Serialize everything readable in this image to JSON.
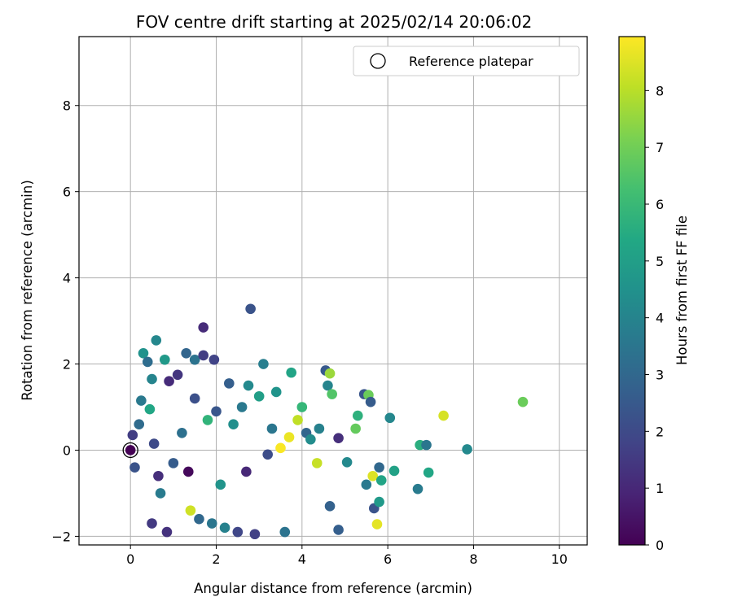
{
  "chart_data": {
    "type": "scatter",
    "title": "FOV centre drift starting at 2025/02/14 20:06:02",
    "xlabel": "Angular distance from reference (arcmin)",
    "ylabel": "Rotation from reference (arcmin)",
    "xlim": [
      -1.2,
      10.65
    ],
    "ylim": [
      -2.2,
      9.6
    ],
    "xticks": [
      0,
      2,
      4,
      6,
      8,
      10
    ],
    "yticks": [
      -2,
      0,
      2,
      4,
      6,
      8
    ],
    "grid": true,
    "legend": {
      "placement": "upper right",
      "entries": [
        "Reference platepar"
      ]
    },
    "reference_point": {
      "x": 0,
      "y": 0,
      "label": "Reference platepar"
    },
    "colorbar": {
      "label": "Hours from first FF file",
      "range": [
        0,
        8.95
      ],
      "ticks": [
        0,
        1,
        2,
        3,
        4,
        5,
        6,
        7,
        8
      ],
      "colormap": "viridis"
    },
    "series": [
      {
        "points": [
          {
            "x": 0.0,
            "y": 0.0,
            "c": 0.0
          },
          {
            "x": 0.05,
            "y": 0.35,
            "c": 1.6
          },
          {
            "x": 0.1,
            "y": -0.4,
            "c": 2.3
          },
          {
            "x": 0.2,
            "y": 0.6,
            "c": 3.1
          },
          {
            "x": 0.25,
            "y": 1.15,
            "c": 3.6
          },
          {
            "x": 0.3,
            "y": 2.25,
            "c": 4.5
          },
          {
            "x": 0.4,
            "y": 2.05,
            "c": 3.2
          },
          {
            "x": 0.45,
            "y": 0.95,
            "c": 5.3
          },
          {
            "x": 0.5,
            "y": 1.65,
            "c": 4.0
          },
          {
            "x": 0.55,
            "y": 0.15,
            "c": 2.0
          },
          {
            "x": 0.6,
            "y": 2.55,
            "c": 4.1
          },
          {
            "x": 0.65,
            "y": -0.6,
            "c": 1.2
          },
          {
            "x": 0.7,
            "y": -1.0,
            "c": 3.7
          },
          {
            "x": 0.5,
            "y": -1.7,
            "c": 1.5
          },
          {
            "x": 0.8,
            "y": 2.1,
            "c": 4.8
          },
          {
            "x": 0.85,
            "y": -1.9,
            "c": 1.3
          },
          {
            "x": 0.9,
            "y": 1.6,
            "c": 1.1
          },
          {
            "x": 1.0,
            "y": -0.3,
            "c": 2.6
          },
          {
            "x": 1.1,
            "y": 1.75,
            "c": 1.4
          },
          {
            "x": 1.2,
            "y": 0.4,
            "c": 3.3
          },
          {
            "x": 1.3,
            "y": 2.25,
            "c": 2.9
          },
          {
            "x": 1.35,
            "y": -0.5,
            "c": 0.2
          },
          {
            "x": 1.4,
            "y": -1.4,
            "c": 8.3
          },
          {
            "x": 1.5,
            "y": 2.1,
            "c": 3.4
          },
          {
            "x": 1.5,
            "y": 1.2,
            "c": 2.2
          },
          {
            "x": 1.6,
            "y": -1.6,
            "c": 3.0
          },
          {
            "x": 1.7,
            "y": 2.85,
            "c": 1.1
          },
          {
            "x": 1.7,
            "y": 2.2,
            "c": 1.6
          },
          {
            "x": 1.8,
            "y": 0.7,
            "c": 5.8
          },
          {
            "x": 1.9,
            "y": -1.7,
            "c": 3.5
          },
          {
            "x": 1.95,
            "y": 2.1,
            "c": 1.8
          },
          {
            "x": 2.0,
            "y": 0.9,
            "c": 2.4
          },
          {
            "x": 2.1,
            "y": -0.8,
            "c": 4.6
          },
          {
            "x": 2.2,
            "y": -1.8,
            "c": 3.9
          },
          {
            "x": 2.3,
            "y": 1.55,
            "c": 2.7
          },
          {
            "x": 2.4,
            "y": 0.6,
            "c": 4.4
          },
          {
            "x": 2.5,
            "y": -1.9,
            "c": 1.9
          },
          {
            "x": 2.6,
            "y": 1.0,
            "c": 3.6
          },
          {
            "x": 2.7,
            "y": -0.5,
            "c": 1.0
          },
          {
            "x": 2.75,
            "y": 1.5,
            "c": 4.2
          },
          {
            "x": 2.8,
            "y": 3.28,
            "c": 2.3
          },
          {
            "x": 2.9,
            "y": -1.95,
            "c": 1.7
          },
          {
            "x": 3.0,
            "y": 1.25,
            "c": 5.0
          },
          {
            "x": 3.1,
            "y": 2.0,
            "c": 3.8
          },
          {
            "x": 3.2,
            "y": -0.1,
            "c": 2.1
          },
          {
            "x": 3.3,
            "y": 0.5,
            "c": 3.5
          },
          {
            "x": 3.4,
            "y": 1.35,
            "c": 4.6
          },
          {
            "x": 3.5,
            "y": 0.05,
            "c": 8.9
          },
          {
            "x": 3.6,
            "y": -1.9,
            "c": 3.4
          },
          {
            "x": 3.7,
            "y": 0.3,
            "c": 8.7
          },
          {
            "x": 3.75,
            "y": 1.8,
            "c": 5.2
          },
          {
            "x": 3.9,
            "y": 0.7,
            "c": 8.1
          },
          {
            "x": 4.0,
            "y": 1.0,
            "c": 5.9
          },
          {
            "x": 4.1,
            "y": 0.4,
            "c": 2.9
          },
          {
            "x": 4.2,
            "y": 0.25,
            "c": 4.3
          },
          {
            "x": 4.35,
            "y": -0.3,
            "c": 8.2
          },
          {
            "x": 4.4,
            "y": 0.5,
            "c": 3.9
          },
          {
            "x": 4.55,
            "y": 1.85,
            "c": 2.5
          },
          {
            "x": 4.6,
            "y": 1.5,
            "c": 4.0
          },
          {
            "x": 4.65,
            "y": -1.3,
            "c": 2.8
          },
          {
            "x": 4.7,
            "y": 1.3,
            "c": 6.5
          },
          {
            "x": 4.65,
            "y": 1.78,
            "c": 7.6
          },
          {
            "x": 4.85,
            "y": 0.28,
            "c": 1.2
          },
          {
            "x": 4.85,
            "y": -1.85,
            "c": 2.7
          },
          {
            "x": 5.05,
            "y": -0.28,
            "c": 4.2
          },
          {
            "x": 5.25,
            "y": 0.5,
            "c": 6.8
          },
          {
            "x": 5.3,
            "y": 0.8,
            "c": 5.7
          },
          {
            "x": 5.45,
            "y": 1.3,
            "c": 2.4
          },
          {
            "x": 5.5,
            "y": -0.8,
            "c": 3.6
          },
          {
            "x": 5.55,
            "y": 1.28,
            "c": 6.9
          },
          {
            "x": 5.6,
            "y": 1.12,
            "c": 2.6
          },
          {
            "x": 5.65,
            "y": -0.6,
            "c": 8.5
          },
          {
            "x": 5.68,
            "y": -1.35,
            "c": 2.3
          },
          {
            "x": 5.75,
            "y": -1.72,
            "c": 8.6
          },
          {
            "x": 5.8,
            "y": -0.4,
            "c": 3.0
          },
          {
            "x": 5.85,
            "y": -0.7,
            "c": 5.2
          },
          {
            "x": 5.8,
            "y": -1.2,
            "c": 4.8
          },
          {
            "x": 6.05,
            "y": 0.75,
            "c": 4.1
          },
          {
            "x": 6.15,
            "y": -0.48,
            "c": 5.1
          },
          {
            "x": 6.7,
            "y": -0.9,
            "c": 3.7
          },
          {
            "x": 6.75,
            "y": 0.12,
            "c": 5.6
          },
          {
            "x": 6.9,
            "y": 0.12,
            "c": 3.5
          },
          {
            "x": 6.95,
            "y": -0.52,
            "c": 5.3
          },
          {
            "x": 7.3,
            "y": 0.8,
            "c": 8.4
          },
          {
            "x": 7.85,
            "y": 0.02,
            "c": 4.2
          },
          {
            "x": 9.15,
            "y": 1.12,
            "c": 6.9
          }
        ]
      }
    ]
  }
}
